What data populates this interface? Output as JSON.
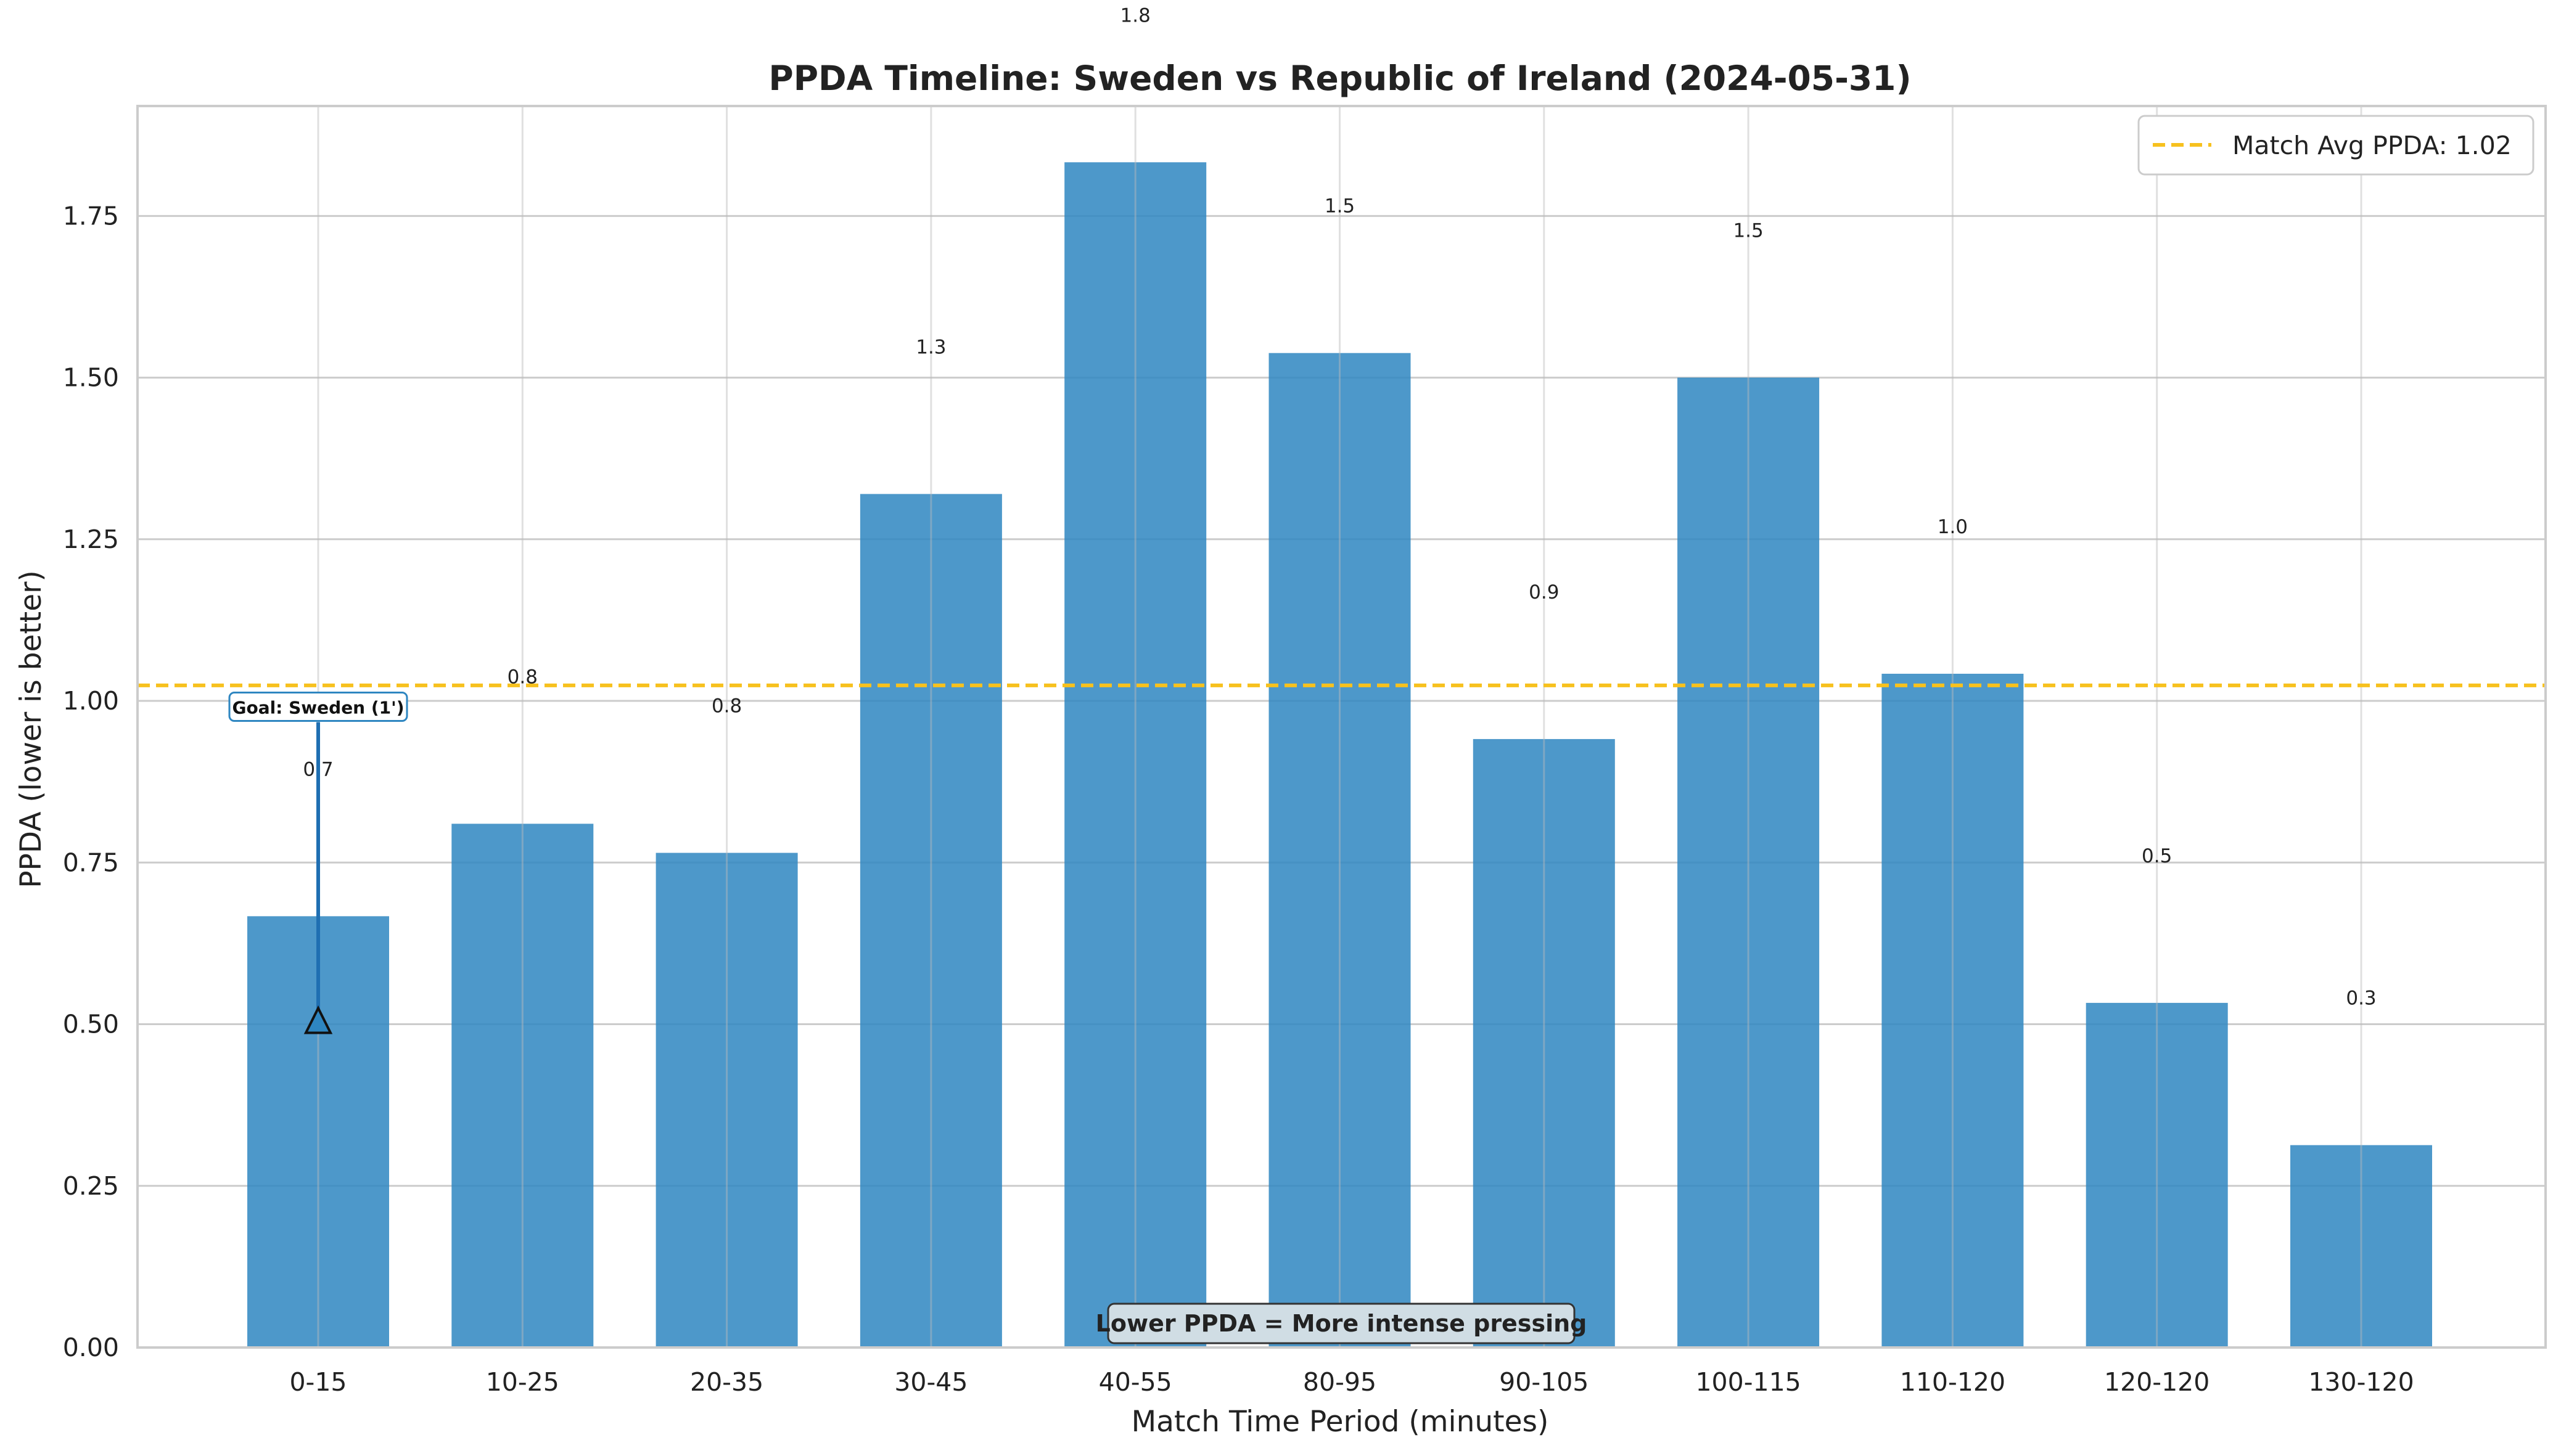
{
  "chart_data": {
    "type": "bar",
    "title": "PPDA Timeline: Sweden vs Republic of Ireland (2024-05-31)",
    "xlabel": "Match Time Period (minutes)",
    "ylabel": "PPDA (lower is better)",
    "ylim": [
      0,
      1.92
    ],
    "yticks": [
      "0.00",
      "0.25",
      "0.50",
      "0.75",
      "1.00",
      "1.25",
      "1.50",
      "1.75"
    ],
    "categories": [
      "0-15",
      "10-25",
      "20-35",
      "30-45",
      "40-55",
      "80-95",
      "90-105",
      "100-115",
      "110-120",
      "120-120",
      "130-120"
    ],
    "values": [
      0.667,
      0.81,
      0.765,
      1.32,
      1.833,
      1.538,
      0.941,
      1.5,
      1.042,
      0.533,
      0.313
    ],
    "value_labels": [
      "0.7",
      "0.8",
      "0.8",
      "1.3",
      "1.8",
      "1.5",
      "0.9",
      "1.5",
      "1.0",
      "0.5",
      "0.3"
    ],
    "bar_color": "#2e86c1",
    "grid": true,
    "reference_line": {
      "label": "Match Avg PPDA: 1.02",
      "value": 1.024,
      "color": "#f7c11e",
      "style": "dashed"
    },
    "legend": {
      "position": "upper-right",
      "entries": [
        "Match Avg PPDA: 1.02"
      ]
    },
    "annotations": {
      "goal": {
        "text": "Goal: Sweden (1')",
        "category": "0-15",
        "marker_value": 0.5,
        "label_value": 0.99
      },
      "note": "Lower PPDA = More intense pressing"
    }
  }
}
